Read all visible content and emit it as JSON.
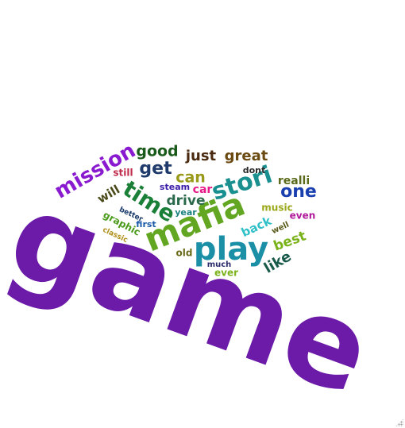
{
  "background": "#ffffff",
  "words": [
    {
      "text": "game",
      "color": "#6c1aa8"
    },
    {
      "text": "play",
      "color": "#1a8fa6"
    },
    {
      "text": "mafia",
      "color": "#62a622"
    },
    {
      "text": "stori",
      "color": "#1a8f8f"
    },
    {
      "text": "time",
      "color": "#1a8038"
    },
    {
      "text": "mission",
      "color": "#8a1ad0"
    },
    {
      "text": "get",
      "color": "#1f3b6b"
    },
    {
      "text": "good",
      "color": "#1a5a1a"
    },
    {
      "text": "just",
      "color": "#4a2a10"
    },
    {
      "text": "great",
      "color": "#6a4a10"
    },
    {
      "text": "one",
      "color": "#1a40b0"
    },
    {
      "text": "like",
      "color": "#1a5a4a"
    },
    {
      "text": "can",
      "color": "#9a9a1a"
    },
    {
      "text": "drive",
      "color": "#2a6a4a"
    },
    {
      "text": "best",
      "color": "#7ab21a"
    },
    {
      "text": "back",
      "color": "#30c0c8"
    },
    {
      "text": "car",
      "color": "#e81a8a"
    },
    {
      "text": "realli",
      "color": "#5a6a1a"
    },
    {
      "text": "will",
      "color": "#4a4a1a"
    },
    {
      "text": "music",
      "color": "#9aa81a"
    },
    {
      "text": "even",
      "color": "#b01a9a"
    },
    {
      "text": "graphic",
      "color": "#4a9a1a"
    },
    {
      "text": "steam",
      "color": "#3a1aa8"
    },
    {
      "text": "still",
      "color": "#c02a4a"
    },
    {
      "text": "dont",
      "color": "#2a2a2a"
    },
    {
      "text": "year",
      "color": "#1a8080"
    },
    {
      "text": "first",
      "color": "#1a5aa8"
    },
    {
      "text": "old",
      "color": "#6a6a1a"
    },
    {
      "text": "ever",
      "color": "#7ab21a"
    },
    {
      "text": "much",
      "color": "#2a2a6a"
    },
    {
      "text": "well",
      "color": "#5a5a1a"
    },
    {
      "text": "better",
      "color": "#1a3a6a"
    },
    {
      "text": "classic",
      "color": "#b0901a"
    }
  ]
}
